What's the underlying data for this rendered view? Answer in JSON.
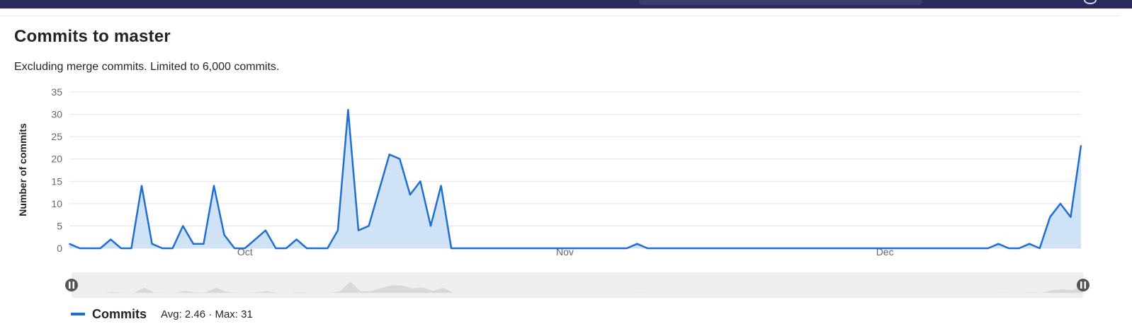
{
  "page": {
    "title": "Commits to master",
    "subtitle": "Excluding merge commits. Limited to 6,000 commits."
  },
  "legend": {
    "series_name": "Commits",
    "stats": "Avg: 2.46 · Max: 31"
  },
  "colors": {
    "line": "#1f6fd1",
    "fill": "#cfe2f6",
    "grid": "#e1e4e8",
    "navigator_bg": "#eeeeee",
    "navigator_series": "#d8d8d8",
    "handle": "#555555",
    "header": "#2b2b5e"
  },
  "icons": {
    "navigator_left_handle": "pause-handle-icon",
    "navigator_right_handle": "pause-handle-icon"
  },
  "chart_data": {
    "type": "area",
    "ylabel": "Number of commits",
    "ylim": [
      0,
      35
    ],
    "yticks": [
      0,
      5,
      10,
      15,
      20,
      25,
      30,
      35
    ],
    "xlim_days": [
      0,
      97
    ],
    "xtick_labels": [
      {
        "label": "Oct",
        "day": 17
      },
      {
        "label": "Nov",
        "day": 48
      },
      {
        "label": "Dec",
        "day": 79
      }
    ],
    "grid": true,
    "legend_position": "bottom-left",
    "series": [
      {
        "name": "Commits",
        "points": [
          [
            0,
            1
          ],
          [
            1,
            0
          ],
          [
            2,
            0
          ],
          [
            3,
            0
          ],
          [
            4,
            2
          ],
          [
            5,
            0
          ],
          [
            6,
            0
          ],
          [
            7,
            14
          ],
          [
            8,
            1
          ],
          [
            9,
            0
          ],
          [
            10,
            0
          ],
          [
            11,
            5
          ],
          [
            12,
            1
          ],
          [
            13,
            1
          ],
          [
            14,
            14
          ],
          [
            15,
            3
          ],
          [
            16,
            0
          ],
          [
            17,
            0
          ],
          [
            18,
            2
          ],
          [
            19,
            4
          ],
          [
            20,
            0
          ],
          [
            21,
            0
          ],
          [
            22,
            2
          ],
          [
            23,
            0
          ],
          [
            24,
            0
          ],
          [
            25,
            0
          ],
          [
            26,
            4
          ],
          [
            27,
            31
          ],
          [
            28,
            4
          ],
          [
            29,
            5
          ],
          [
            30,
            13
          ],
          [
            31,
            21
          ],
          [
            32,
            20
          ],
          [
            33,
            12
          ],
          [
            34,
            15
          ],
          [
            35,
            5
          ],
          [
            36,
            14
          ],
          [
            37,
            0
          ],
          [
            38,
            0
          ],
          [
            39,
            0
          ],
          [
            40,
            0
          ],
          [
            41,
            0
          ],
          [
            42,
            0
          ],
          [
            43,
            0
          ],
          [
            44,
            0
          ],
          [
            45,
            0
          ],
          [
            46,
            0
          ],
          [
            47,
            0
          ],
          [
            48,
            0
          ],
          [
            49,
            0
          ],
          [
            50,
            0
          ],
          [
            51,
            0
          ],
          [
            52,
            0
          ],
          [
            53,
            0
          ],
          [
            54,
            0
          ],
          [
            55,
            1
          ],
          [
            56,
            0
          ],
          [
            57,
            0
          ],
          [
            58,
            0
          ],
          [
            59,
            0
          ],
          [
            60,
            0
          ],
          [
            61,
            0
          ],
          [
            62,
            0
          ],
          [
            63,
            0
          ],
          [
            64,
            0
          ],
          [
            65,
            0
          ],
          [
            66,
            0
          ],
          [
            67,
            0
          ],
          [
            68,
            0
          ],
          [
            69,
            0
          ],
          [
            70,
            0
          ],
          [
            71,
            0
          ],
          [
            72,
            0
          ],
          [
            73,
            0
          ],
          [
            74,
            0
          ],
          [
            75,
            0
          ],
          [
            76,
            0
          ],
          [
            77,
            0
          ],
          [
            78,
            0
          ],
          [
            79,
            0
          ],
          [
            80,
            0
          ],
          [
            81,
            0
          ],
          [
            82,
            0
          ],
          [
            83,
            0
          ],
          [
            84,
            0
          ],
          [
            85,
            0
          ],
          [
            86,
            0
          ],
          [
            87,
            0
          ],
          [
            88,
            0
          ],
          [
            89,
            0
          ],
          [
            90,
            1
          ],
          [
            91,
            0
          ],
          [
            92,
            0
          ],
          [
            93,
            1
          ],
          [
            94,
            0
          ],
          [
            95,
            7
          ],
          [
            96,
            10
          ],
          [
            97,
            7
          ],
          [
            98,
            23
          ]
        ]
      }
    ]
  }
}
